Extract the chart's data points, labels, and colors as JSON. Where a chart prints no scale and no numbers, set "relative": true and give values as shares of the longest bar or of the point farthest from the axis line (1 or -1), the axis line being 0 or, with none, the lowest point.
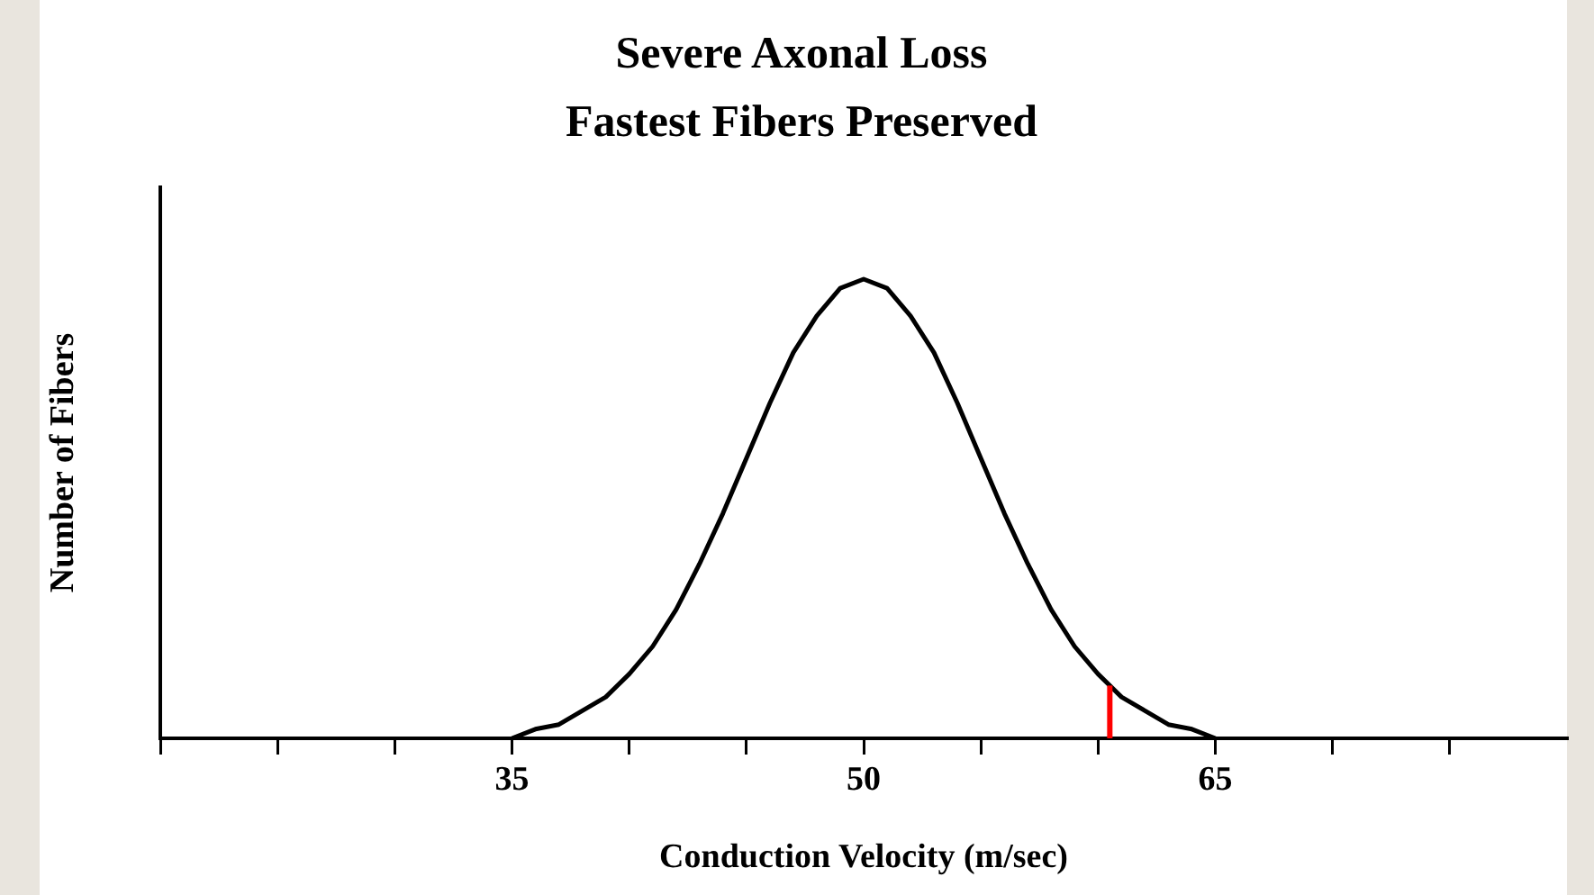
{
  "chart_data": {
    "type": "line",
    "title": "Severe Axonal Loss",
    "subtitle": "Fastest Fibers Preserved",
    "xlabel": "Conduction Velocity (m/sec)",
    "ylabel": "Number of Fibers",
    "relative": true,
    "x": [
      35,
      36,
      37,
      38,
      39,
      40,
      41,
      42,
      43,
      44,
      45,
      46,
      47,
      48,
      49,
      50,
      51,
      52,
      53,
      54,
      55,
      56,
      57,
      58,
      59,
      60,
      61,
      62,
      63,
      64,
      65
    ],
    "series": [
      {
        "color": "#000000",
        "values": [
          0,
          0.02,
          0.03,
          0.06,
          0.09,
          0.14,
          0.2,
          0.28,
          0.38,
          0.49,
          0.61,
          0.73,
          0.84,
          0.92,
          0.98,
          1,
          0.98,
          0.92,
          0.84,
          0.73,
          0.61,
          0.49,
          0.38,
          0.28,
          0.2,
          0.14,
          0.09,
          0.06,
          0.03,
          0.02,
          0
        ]
      }
    ],
    "xlim": [
      20,
      80
    ],
    "xticks": [
      {
        "value": 20,
        "label": null
      },
      {
        "value": 25,
        "label": null
      },
      {
        "value": 30,
        "label": null
      },
      35,
      {
        "value": 40,
        "label": null
      },
      {
        "value": 45,
        "label": null
      },
      50,
      {
        "value": 55,
        "label": null
      },
      {
        "value": 60,
        "label": null
      },
      65,
      {
        "value": 70,
        "label": null
      },
      {
        "value": 75,
        "label": null
      }
    ],
    "ref_lines": [
      {
        "axis": "x",
        "value": 60.5,
        "color": "#ff0000"
      }
    ],
    "grid": false,
    "legend": false,
    "marker": "none",
    "line_style": "solid"
  }
}
